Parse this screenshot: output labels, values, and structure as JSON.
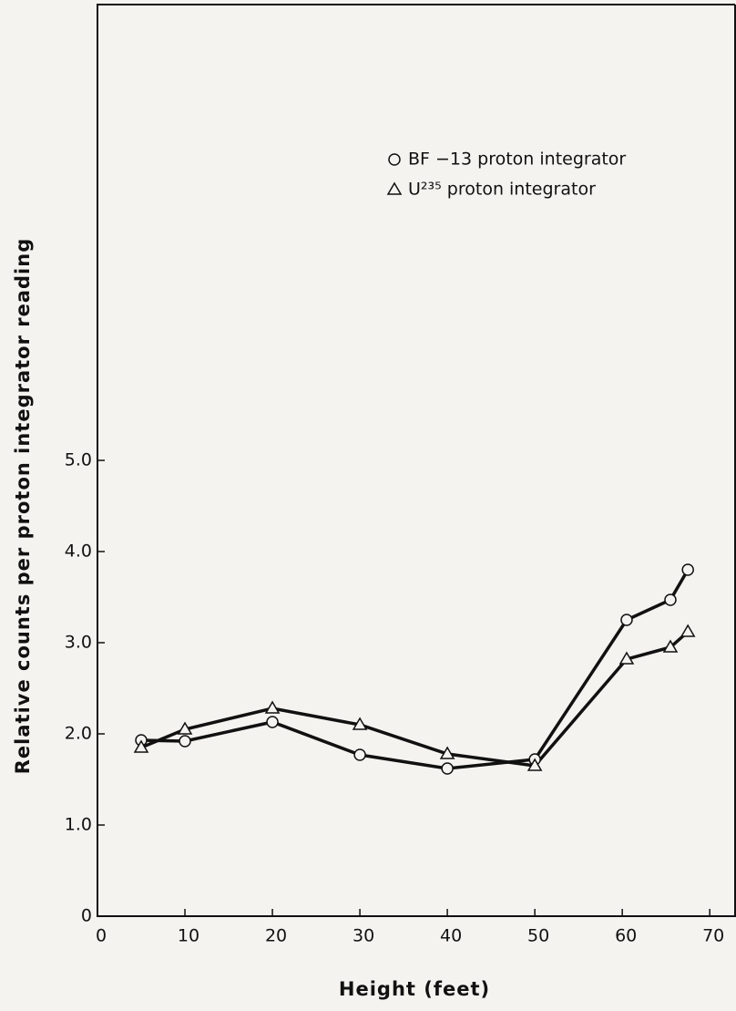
{
  "chart_data": {
    "type": "line",
    "xlabel": "Height (feet)",
    "ylabel": "Relative counts per proton integrator reading",
    "xlim": [
      0,
      73
    ],
    "xticks": [
      0,
      10,
      20,
      30,
      40,
      50,
      60,
      70
    ],
    "ylim": [
      0,
      10
    ],
    "yticks": [
      0,
      {
        "value": 1,
        "label": "1.0"
      },
      {
        "value": 2,
        "label": "2.0"
      },
      {
        "value": 3,
        "label": "3.0"
      },
      {
        "value": 4,
        "label": "4.0"
      },
      {
        "value": 5,
        "label": "5.0"
      }
    ],
    "legend": "upper right",
    "series": [
      {
        "name": "BF −13 proton integrator",
        "marker": "circle",
        "color": "#111111",
        "x": [
          5,
          10,
          20,
          30,
          40,
          50,
          60.5,
          65.5,
          67.5
        ],
        "values": [
          1.93,
          1.92,
          2.13,
          1.77,
          1.62,
          1.72,
          3.25,
          3.47,
          3.8
        ]
      },
      {
        "name": "U²³⁵ proton integrator",
        "marker": "triangle",
        "color": "#111111",
        "x": [
          5,
          10,
          20,
          30,
          40,
          50,
          60.5,
          65.5,
          67.5
        ],
        "values": [
          1.85,
          2.05,
          2.28,
          2.1,
          1.78,
          1.65,
          2.82,
          2.95,
          3.12
        ]
      }
    ]
  }
}
